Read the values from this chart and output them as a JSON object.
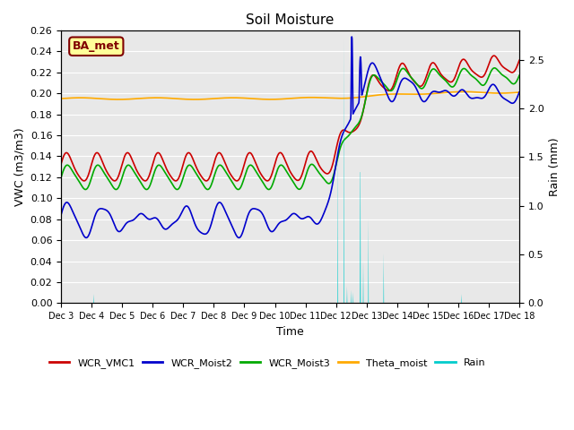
{
  "title": "Soil Moisture",
  "xlabel": "Time",
  "ylabel_left": "VWC (m3/m3)",
  "ylabel_right": "Rain (mm)",
  "ylim_left": [
    0.0,
    0.26
  ],
  "ylim_right": [
    0.0,
    2.8
  ],
  "n_days": 15,
  "colors": {
    "WCR_VMC1": "#cc0000",
    "WCR_Moist2": "#0000cc",
    "WCR_Moist3": "#00aa00",
    "Theta_moist": "#ffaa00",
    "Rain": "#00cccc"
  },
  "background_color": "#e8e8e8",
  "annotation_box_color": "#ffff99",
  "annotation_text_color": "#800000",
  "annotation_border_color": "#800000",
  "annotation_text": "BA_met",
  "legend_labels": [
    "WCR_VMC1",
    "WCR_Moist2",
    "WCR_Moist3",
    "Theta_moist",
    "Rain"
  ],
  "line_width": 1.2
}
